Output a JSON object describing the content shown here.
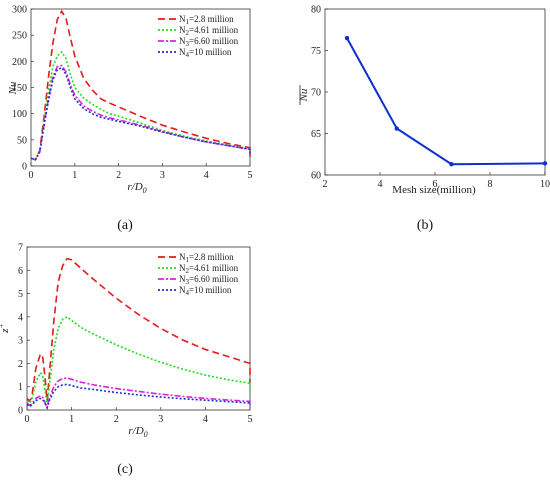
{
  "captions": {
    "a": "(a)",
    "b": "(b)",
    "c": "(c)"
  },
  "legend_labels": [
    "N",
    "N",
    "N",
    "N"
  ],
  "legend_subscripts": [
    "1",
    "2",
    "3",
    "4"
  ],
  "legend_values": [
    "=2.8 million",
    "=4.61 million",
    "=6.60 million",
    "=10 million"
  ],
  "colors": {
    "N1": "#e41a1c",
    "N2": "#22dd22",
    "N3": "#dd22dd",
    "N4": "#1f2fcc",
    "mesh": "#1030d0"
  },
  "chart_data": [
    {
      "id": "a",
      "type": "line",
      "xlabel": "r/D",
      "xlabel_sub": "0",
      "ylabel": "Nu",
      "xlim": [
        0,
        5
      ],
      "ylim": [
        0,
        300
      ],
      "xticks": [
        0,
        1,
        2,
        3,
        4,
        5
      ],
      "yticks": [
        0,
        50,
        100,
        150,
        200,
        250,
        300
      ],
      "legend_position": "top-right",
      "series": [
        {
          "name": "N1=2.8 million",
          "values": [
            [
              0,
              15
            ],
            [
              0.1,
              12
            ],
            [
              0.2,
              30
            ],
            [
              0.3,
              95
            ],
            [
              0.4,
              170
            ],
            [
              0.5,
              235
            ],
            [
              0.6,
              280
            ],
            [
              0.7,
              296
            ],
            [
              0.8,
              282
            ],
            [
              0.9,
              245
            ],
            [
              1.0,
              210
            ],
            [
              1.2,
              168
            ],
            [
              1.4,
              145
            ],
            [
              1.6,
              128
            ],
            [
              1.8,
              120
            ],
            [
              2.0,
              113
            ],
            [
              2.5,
              95
            ],
            [
              3.0,
              78
            ],
            [
              3.5,
              65
            ],
            [
              4.0,
              53
            ],
            [
              4.5,
              43
            ],
            [
              5.0,
              35
            ],
            [
              5.0,
              18
            ]
          ]
        },
        {
          "name": "N2=4.61 million",
          "values": [
            [
              0,
              15
            ],
            [
              0.1,
              12
            ],
            [
              0.2,
              28
            ],
            [
              0.3,
              85
            ],
            [
              0.4,
              145
            ],
            [
              0.5,
              190
            ],
            [
              0.6,
              210
            ],
            [
              0.7,
              218
            ],
            [
              0.8,
              205
            ],
            [
              0.9,
              175
            ],
            [
              1.0,
              150
            ],
            [
              1.2,
              130
            ],
            [
              1.4,
              118
            ],
            [
              1.6,
              108
            ],
            [
              1.8,
              100
            ],
            [
              2.0,
              95
            ],
            [
              2.5,
              82
            ],
            [
              3.0,
              68
            ],
            [
              3.5,
              57
            ],
            [
              4.0,
              48
            ],
            [
              4.5,
              40
            ],
            [
              5.0,
              33
            ],
            [
              5.0,
              20
            ]
          ]
        },
        {
          "name": "N3=6.60 million",
          "values": [
            [
              0,
              15
            ],
            [
              0.1,
              12
            ],
            [
              0.2,
              27
            ],
            [
              0.3,
              80
            ],
            [
              0.4,
              130
            ],
            [
              0.5,
              170
            ],
            [
              0.6,
              190
            ],
            [
              0.7,
              192
            ],
            [
              0.8,
              180
            ],
            [
              0.9,
              155
            ],
            [
              1.0,
              135
            ],
            [
              1.2,
              115
            ],
            [
              1.4,
              105
            ],
            [
              1.6,
              97
            ],
            [
              1.8,
              92
            ],
            [
              2.0,
              88
            ],
            [
              2.5,
              78
            ],
            [
              3.0,
              66
            ],
            [
              3.5,
              55
            ],
            [
              4.0,
              46
            ],
            [
              4.5,
              39
            ],
            [
              5.0,
              32
            ],
            [
              5.0,
              21
            ]
          ]
        },
        {
          "name": "N4=10 million",
          "values": [
            [
              0,
              15
            ],
            [
              0.1,
              12
            ],
            [
              0.2,
              27
            ],
            [
              0.3,
              78
            ],
            [
              0.4,
              125
            ],
            [
              0.5,
              165
            ],
            [
              0.6,
              184
            ],
            [
              0.7,
              188
            ],
            [
              0.8,
              175
            ],
            [
              0.9,
              150
            ],
            [
              1.0,
              128
            ],
            [
              1.2,
              110
            ],
            [
              1.4,
              100
            ],
            [
              1.6,
              93
            ],
            [
              1.8,
              89
            ],
            [
              2.0,
              85
            ],
            [
              2.5,
              76
            ],
            [
              3.0,
              65
            ],
            [
              3.5,
              55
            ],
            [
              4.0,
              46
            ],
            [
              4.5,
              39
            ],
            [
              5.0,
              32
            ],
            [
              5.0,
              22
            ]
          ]
        }
      ]
    },
    {
      "id": "b",
      "type": "line",
      "xlabel": "Mesh size(million)",
      "ylabel": "Nu",
      "xlim": [
        2,
        10
      ],
      "ylim": [
        60,
        80
      ],
      "xticks": [
        2,
        4,
        6,
        8,
        10
      ],
      "yticks": [
        60,
        65,
        70,
        75,
        80
      ],
      "series": [
        {
          "values": [
            [
              2.8,
              76.5
            ],
            [
              4.61,
              65.6
            ],
            [
              6.6,
              61.3
            ],
            [
              10,
              61.4
            ]
          ]
        }
      ]
    },
    {
      "id": "c",
      "type": "line",
      "xlabel": "r/D",
      "xlabel_sub": "0",
      "ylabel": "z",
      "ylabel_sup": "+",
      "xlim": [
        0,
        5
      ],
      "ylim": [
        0,
        7
      ],
      "xticks": [
        0,
        1,
        2,
        3,
        4,
        5
      ],
      "yticks": [
        0,
        1,
        2,
        3,
        4,
        5,
        6,
        7
      ],
      "legend_position": "top-right",
      "series": [
        {
          "name": "N1=2.8 million",
          "values": [
            [
              0,
              0.5
            ],
            [
              0.05,
              0.4
            ],
            [
              0.1,
              0.5
            ],
            [
              0.2,
              1.8
            ],
            [
              0.3,
              2.4
            ],
            [
              0.35,
              2.3
            ],
            [
              0.4,
              1.5
            ],
            [
              0.45,
              0.4
            ],
            [
              0.5,
              1.5
            ],
            [
              0.6,
              3.8
            ],
            [
              0.7,
              5.5
            ],
            [
              0.8,
              6.2
            ],
            [
              0.9,
              6.5
            ],
            [
              1.0,
              6.45
            ],
            [
              1.2,
              6.1
            ],
            [
              1.5,
              5.6
            ],
            [
              2.0,
              4.8
            ],
            [
              2.5,
              4.1
            ],
            [
              3.0,
              3.5
            ],
            [
              3.5,
              3.0
            ],
            [
              4.0,
              2.6
            ],
            [
              4.5,
              2.3
            ],
            [
              5.0,
              2.0
            ],
            [
              5.0,
              1.2
            ]
          ]
        },
        {
          "name": "N2=4.61 million",
          "values": [
            [
              0,
              0.4
            ],
            [
              0.05,
              0.3
            ],
            [
              0.1,
              0.4
            ],
            [
              0.2,
              1.2
            ],
            [
              0.3,
              1.6
            ],
            [
              0.35,
              1.5
            ],
            [
              0.4,
              0.9
            ],
            [
              0.45,
              0.3
            ],
            [
              0.5,
              1.0
            ],
            [
              0.6,
              2.6
            ],
            [
              0.7,
              3.5
            ],
            [
              0.8,
              3.9
            ],
            [
              0.9,
              4.0
            ],
            [
              1.0,
              3.85
            ],
            [
              1.2,
              3.55
            ],
            [
              1.5,
              3.25
            ],
            [
              2.0,
              2.8
            ],
            [
              2.5,
              2.4
            ],
            [
              3.0,
              2.05
            ],
            [
              3.5,
              1.75
            ],
            [
              4.0,
              1.5
            ],
            [
              4.5,
              1.3
            ],
            [
              5.0,
              1.15
            ],
            [
              5.0,
              0.8
            ]
          ]
        },
        {
          "name": "N3=6.60 million",
          "values": [
            [
              0,
              0.3
            ],
            [
              0.05,
              0.2
            ],
            [
              0.1,
              0.25
            ],
            [
              0.2,
              0.5
            ],
            [
              0.3,
              0.6
            ],
            [
              0.35,
              0.55
            ],
            [
              0.4,
              0.35
            ],
            [
              0.45,
              0.1
            ],
            [
              0.5,
              0.5
            ],
            [
              0.6,
              1.0
            ],
            [
              0.7,
              1.25
            ],
            [
              0.8,
              1.35
            ],
            [
              0.9,
              1.38
            ],
            [
              1.0,
              1.32
            ],
            [
              1.2,
              1.2
            ],
            [
              1.5,
              1.08
            ],
            [
              2.0,
              0.92
            ],
            [
              2.5,
              0.8
            ],
            [
              3.0,
              0.68
            ],
            [
              3.5,
              0.58
            ],
            [
              4.0,
              0.5
            ],
            [
              4.5,
              0.43
            ],
            [
              5.0,
              0.37
            ],
            [
              5.0,
              0.25
            ]
          ]
        },
        {
          "name": "N4=10 million",
          "values": [
            [
              0,
              0.25
            ],
            [
              0.05,
              0.15
            ],
            [
              0.1,
              0.2
            ],
            [
              0.2,
              0.4
            ],
            [
              0.3,
              0.5
            ],
            [
              0.35,
              0.45
            ],
            [
              0.4,
              0.3
            ],
            [
              0.45,
              0.1
            ],
            [
              0.5,
              0.4
            ],
            [
              0.6,
              0.8
            ],
            [
              0.7,
              1.0
            ],
            [
              0.8,
              1.08
            ],
            [
              0.9,
              1.1
            ],
            [
              1.0,
              1.05
            ],
            [
              1.2,
              0.95
            ],
            [
              1.5,
              0.88
            ],
            [
              2.0,
              0.75
            ],
            [
              2.5,
              0.65
            ],
            [
              3.0,
              0.56
            ],
            [
              3.5,
              0.48
            ],
            [
              4.0,
              0.42
            ],
            [
              4.5,
              0.36
            ],
            [
              5.0,
              0.3
            ],
            [
              5.0,
              0.2
            ]
          ]
        }
      ]
    }
  ]
}
